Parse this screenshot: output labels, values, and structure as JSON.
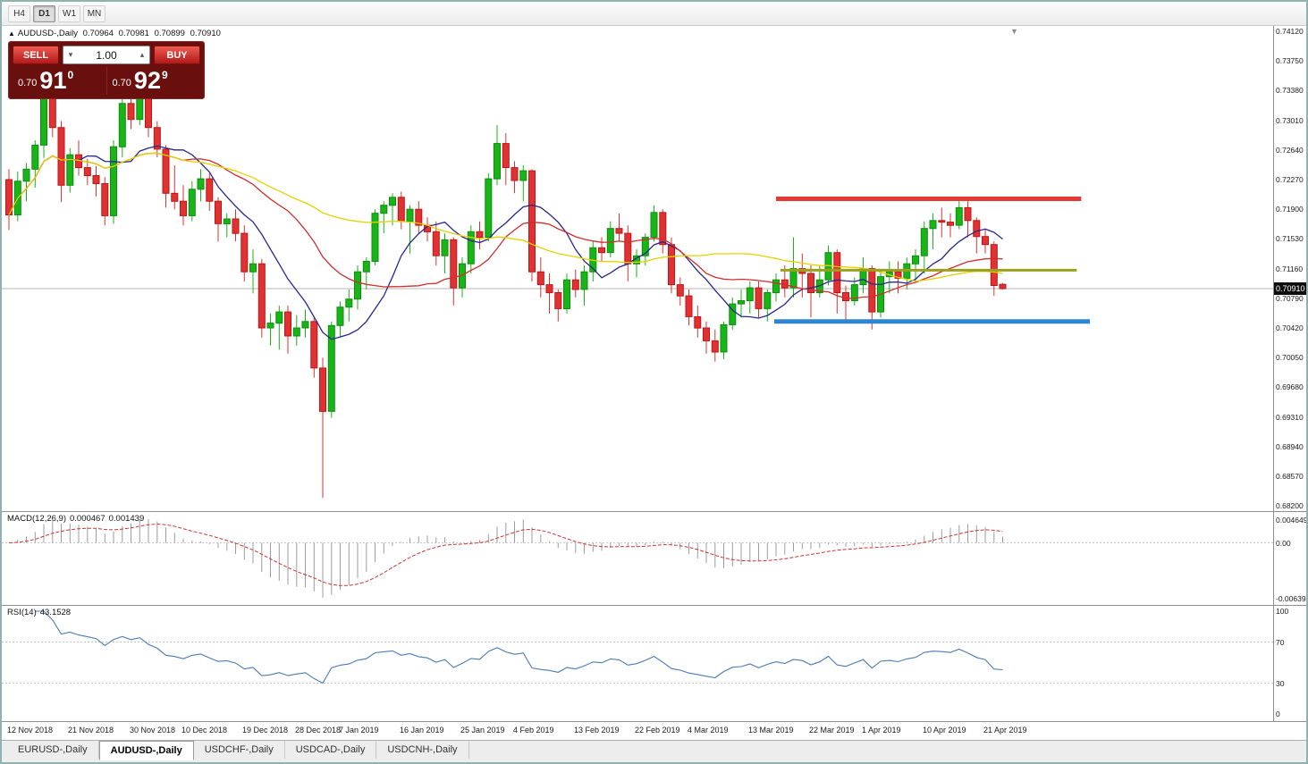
{
  "toolbar": {
    "items": [
      {
        "label": "H4",
        "active": false
      },
      {
        "label": "D1",
        "active": true
      },
      {
        "label": "W1",
        "active": false
      },
      {
        "label": "MN",
        "active": false
      }
    ]
  },
  "chart_header": {
    "collapse_icon": "▲",
    "title": "AUDUSD-,Daily",
    "open": "0.70964",
    "high": "0.70981",
    "low": "0.70899",
    "close": "0.70910"
  },
  "trade_panel": {
    "sell_label": "SELL",
    "buy_label": "BUY",
    "volume": "1.00",
    "volume_down_icon": "▾",
    "volume_up_icon": "▴",
    "sell_price": {
      "prefix": "0.70",
      "big": "91",
      "sup": "0"
    },
    "buy_price": {
      "prefix": "0.70",
      "big": "92",
      "sup": "9"
    }
  },
  "price_axis": {
    "labels": [
      "0.74120",
      "0.73750",
      "0.73380",
      "0.73010",
      "0.72640",
      "0.72270",
      "0.71900",
      "0.71530",
      "0.71160",
      "0.70790",
      "0.70420",
      "0.70050",
      "0.69680",
      "0.69310",
      "0.68940",
      "0.68570",
      "0.68200"
    ],
    "current": "0.70910"
  },
  "macd_panel": {
    "label": "MACD(12,26,9)",
    "value_main": "0.000467",
    "value_signal": "0.001439",
    "axis_top": "0.0046496",
    "axis_zero": "0.00",
    "axis_bottom": "-0.0063936"
  },
  "rsi_panel": {
    "label": "RSI(14)",
    "value": "43.1528",
    "axis": [
      "100",
      "70",
      "30",
      "0"
    ]
  },
  "date_axis": [
    {
      "label": "12 Nov 2018",
      "i": 0
    },
    {
      "label": "21 Nov 2018",
      "i": 7
    },
    {
      "label": "30 Nov 2018",
      "i": 14
    },
    {
      "label": "10 Dec 2018",
      "i": 20
    },
    {
      "label": "19 Dec 2018",
      "i": 27
    },
    {
      "label": "28 Dec 2018",
      "i": 33
    },
    {
      "label": "7 Jan 2019",
      "i": 38
    },
    {
      "label": "16 Jan 2019",
      "i": 45
    },
    {
      "label": "25 Jan 2019",
      "i": 52
    },
    {
      "label": "4 Feb 2019",
      "i": 58
    },
    {
      "label": "13 Feb 2019",
      "i": 65
    },
    {
      "label": "22 Feb 2019",
      "i": 72
    },
    {
      "label": "4 Mar 2019",
      "i": 78
    },
    {
      "label": "13 Mar 2019",
      "i": 85
    },
    {
      "label": "22 Mar 2019",
      "i": 92
    },
    {
      "label": "1 Apr 2019",
      "i": 98
    },
    {
      "label": "10 Apr 2019",
      "i": 105
    },
    {
      "label": "21 Apr 2019",
      "i": 112
    }
  ],
  "tabs": [
    {
      "label": "EURUSD-,Daily",
      "symbol": "EURUSD",
      "active": false
    },
    {
      "label": "AUDUSD-,Daily",
      "symbol": "AUDUSD",
      "active": true
    },
    {
      "label": "USDCHF-,Daily",
      "symbol": "USDCHF",
      "active": false
    },
    {
      "label": "USDCAD-,Daily",
      "symbol": "USDCAD",
      "active": false
    },
    {
      "label": "USDCNH-,Daily",
      "symbol": "USDCNH",
      "active": false
    }
  ],
  "chart_data": {
    "type": "candlestick",
    "symbol": "AUDUSD-",
    "timeframe": "Daily",
    "current_price": 0.7091,
    "price_range_top_label": 0.7412,
    "price_range_bottom_label": 0.682,
    "colors": {
      "up": "#18b418",
      "up_border": "#0b8f0b",
      "down": "#e03232",
      "down_border": "#bc1616",
      "bid_line": "#b4b4b4",
      "macd_histogram": "#9c9c9c",
      "macd_signal": "#cc3333",
      "rsi_line": "#4a7ab8"
    },
    "moving_averages": [
      {
        "period": 9,
        "color": "#26268c"
      },
      {
        "period": 21,
        "color": "#cf2e2e"
      },
      {
        "period": 45,
        "color": "#e3d200"
      }
    ],
    "levels": [
      {
        "name": "resistance",
        "price": 0.7203,
        "i1": 88,
        "i2": 123,
        "color": "#e53935",
        "width": 5
      },
      {
        "name": "mid-level",
        "price": 0.7114,
        "i1": 88.5,
        "i2": 122.5,
        "color": "#9aa21b",
        "width": 3
      },
      {
        "name": "support",
        "price": 0.705,
        "i1": 87.8,
        "i2": 124,
        "color": "#2e86d3",
        "width": 5
      }
    ],
    "indicators": {
      "macd": {
        "fast": 12,
        "slow": 26,
        "signal": 9
      },
      "rsi": {
        "period": 14
      }
    },
    "ohlc": [
      [
        0.7227,
        0.724,
        0.7164,
        0.7183
      ],
      [
        0.7183,
        0.7237,
        0.7175,
        0.7225
      ],
      [
        0.7225,
        0.7248,
        0.72,
        0.724
      ],
      [
        0.724,
        0.7276,
        0.7217,
        0.727
      ],
      [
        0.727,
        0.7338,
        0.7254,
        0.733
      ],
      [
        0.733,
        0.7337,
        0.728,
        0.7292
      ],
      [
        0.7292,
        0.73,
        0.7199,
        0.722
      ],
      [
        0.722,
        0.7266,
        0.7211,
        0.7258
      ],
      [
        0.7258,
        0.7276,
        0.7232,
        0.7242
      ],
      [
        0.7242,
        0.7253,
        0.722,
        0.7232
      ],
      [
        0.7232,
        0.7244,
        0.7206,
        0.7222
      ],
      [
        0.7222,
        0.723,
        0.717,
        0.7182
      ],
      [
        0.7182,
        0.7276,
        0.7172,
        0.7268
      ],
      [
        0.7268,
        0.7344,
        0.7255,
        0.7322
      ],
      [
        0.7322,
        0.7329,
        0.729,
        0.7302
      ],
      [
        0.7302,
        0.734,
        0.7295,
        0.7335
      ],
      [
        0.7335,
        0.7345,
        0.728,
        0.7292
      ],
      [
        0.7292,
        0.73,
        0.7255,
        0.7265
      ],
      [
        0.7265,
        0.727,
        0.7192,
        0.721
      ],
      [
        0.721,
        0.7245,
        0.719,
        0.72
      ],
      [
        0.72,
        0.722,
        0.717,
        0.7182
      ],
      [
        0.7182,
        0.7225,
        0.7175,
        0.7215
      ],
      [
        0.7215,
        0.724,
        0.72,
        0.7228
      ],
      [
        0.7228,
        0.7235,
        0.7188,
        0.72
      ],
      [
        0.72,
        0.7205,
        0.715,
        0.7172
      ],
      [
        0.7172,
        0.7185,
        0.7155,
        0.7178
      ],
      [
        0.7178,
        0.719,
        0.715,
        0.716
      ],
      [
        0.716,
        0.717,
        0.71,
        0.7112
      ],
      [
        0.7112,
        0.714,
        0.7085,
        0.7122
      ],
      [
        0.7122,
        0.7128,
        0.703,
        0.7042
      ],
      [
        0.7042,
        0.706,
        0.702,
        0.7048
      ],
      [
        0.7048,
        0.707,
        0.7015,
        0.7062
      ],
      [
        0.7062,
        0.707,
        0.701,
        0.7032
      ],
      [
        0.7032,
        0.7058,
        0.702,
        0.7042
      ],
      [
        0.7042,
        0.7065,
        0.703,
        0.705
      ],
      [
        0.705,
        0.7055,
        0.698,
        0.6992
      ],
      [
        0.6992,
        0.7005,
        0.683,
        0.6938
      ],
      [
        0.6938,
        0.705,
        0.693,
        0.7045
      ],
      [
        0.7045,
        0.7075,
        0.703,
        0.7068
      ],
      [
        0.7068,
        0.709,
        0.705,
        0.7078
      ],
      [
        0.7078,
        0.712,
        0.7065,
        0.7112
      ],
      [
        0.7112,
        0.713,
        0.709,
        0.7125
      ],
      [
        0.7125,
        0.719,
        0.712,
        0.7185
      ],
      [
        0.7185,
        0.72,
        0.716,
        0.7195
      ],
      [
        0.7195,
        0.721,
        0.717,
        0.7205
      ],
      [
        0.7205,
        0.7212,
        0.7165,
        0.7175
      ],
      [
        0.7175,
        0.7195,
        0.7135,
        0.719
      ],
      [
        0.719,
        0.72,
        0.716,
        0.717
      ],
      [
        0.717,
        0.718,
        0.715,
        0.7162
      ],
      [
        0.7162,
        0.7175,
        0.712,
        0.7132
      ],
      [
        0.7132,
        0.716,
        0.711,
        0.7152
      ],
      [
        0.7152,
        0.7155,
        0.707,
        0.7092
      ],
      [
        0.7092,
        0.713,
        0.708,
        0.7122
      ],
      [
        0.7122,
        0.717,
        0.711,
        0.7162
      ],
      [
        0.7162,
        0.7175,
        0.714,
        0.7155
      ],
      [
        0.7155,
        0.7235,
        0.715,
        0.7228
      ],
      [
        0.7228,
        0.7295,
        0.722,
        0.7272
      ],
      [
        0.7272,
        0.7285,
        0.722,
        0.7242
      ],
      [
        0.7242,
        0.725,
        0.721,
        0.7226
      ],
      [
        0.7226,
        0.7245,
        0.72,
        0.7238
      ],
      [
        0.7238,
        0.724,
        0.71,
        0.7112
      ],
      [
        0.7112,
        0.713,
        0.708,
        0.7096
      ],
      [
        0.7096,
        0.711,
        0.706,
        0.7086
      ],
      [
        0.7086,
        0.709,
        0.705,
        0.7066
      ],
      [
        0.7066,
        0.711,
        0.706,
        0.7102
      ],
      [
        0.7102,
        0.7115,
        0.708,
        0.709
      ],
      [
        0.709,
        0.712,
        0.707,
        0.7112
      ],
      [
        0.7112,
        0.715,
        0.71,
        0.7142
      ],
      [
        0.7142,
        0.7155,
        0.7125,
        0.7136
      ],
      [
        0.7136,
        0.7175,
        0.713,
        0.7166
      ],
      [
        0.7166,
        0.7185,
        0.715,
        0.716
      ],
      [
        0.716,
        0.717,
        0.71,
        0.7122
      ],
      [
        0.7122,
        0.714,
        0.7105,
        0.7132
      ],
      [
        0.7132,
        0.716,
        0.712,
        0.7155
      ],
      [
        0.7155,
        0.7195,
        0.715,
        0.7186
      ],
      [
        0.7186,
        0.719,
        0.7135,
        0.7146
      ],
      [
        0.7146,
        0.7155,
        0.7085,
        0.7096
      ],
      [
        0.7096,
        0.7105,
        0.707,
        0.7082
      ],
      [
        0.7082,
        0.709,
        0.7045,
        0.7056
      ],
      [
        0.7056,
        0.707,
        0.703,
        0.7042
      ],
      [
        0.7042,
        0.705,
        0.701,
        0.7026
      ],
      [
        0.7026,
        0.704,
        0.7,
        0.7012
      ],
      [
        0.7012,
        0.705,
        0.7003,
        0.7046
      ],
      [
        0.7046,
        0.708,
        0.704,
        0.7072
      ],
      [
        0.7072,
        0.709,
        0.7055,
        0.7076
      ],
      [
        0.7076,
        0.71,
        0.706,
        0.7092
      ],
      [
        0.7092,
        0.71,
        0.7055,
        0.7066
      ],
      [
        0.7066,
        0.709,
        0.705,
        0.7086
      ],
      [
        0.7086,
        0.711,
        0.7075,
        0.7102
      ],
      [
        0.7102,
        0.712,
        0.708,
        0.7092
      ],
      [
        0.7092,
        0.7155,
        0.708,
        0.7116
      ],
      [
        0.7116,
        0.7135,
        0.708,
        0.711
      ],
      [
        0.711,
        0.712,
        0.7055,
        0.7086
      ],
      [
        0.7086,
        0.712,
        0.708,
        0.7102
      ],
      [
        0.7102,
        0.7145,
        0.7095,
        0.7136
      ],
      [
        0.7136,
        0.714,
        0.706,
        0.7086
      ],
      [
        0.7086,
        0.7095,
        0.705,
        0.7076
      ],
      [
        0.7076,
        0.7105,
        0.707,
        0.7096
      ],
      [
        0.7096,
        0.713,
        0.7085,
        0.7116
      ],
      [
        0.7116,
        0.712,
        0.704,
        0.7062
      ],
      [
        0.7062,
        0.7115,
        0.7055,
        0.7106
      ],
      [
        0.7106,
        0.7125,
        0.7085,
        0.7112
      ],
      [
        0.7112,
        0.7125,
        0.7085,
        0.7104
      ],
      [
        0.7104,
        0.713,
        0.709,
        0.7122
      ],
      [
        0.7122,
        0.714,
        0.71,
        0.7132
      ],
      [
        0.7132,
        0.7175,
        0.711,
        0.7166
      ],
      [
        0.7166,
        0.7185,
        0.714,
        0.7176
      ],
      [
        0.7176,
        0.7192,
        0.7155,
        0.7174
      ],
      [
        0.7174,
        0.7185,
        0.7155,
        0.717
      ],
      [
        0.717,
        0.7205,
        0.7165,
        0.7192
      ],
      [
        0.7192,
        0.72,
        0.7155,
        0.7176
      ],
      [
        0.7176,
        0.718,
        0.7135,
        0.7156
      ],
      [
        0.7156,
        0.7165,
        0.7135,
        0.7146
      ],
      [
        0.7146,
        0.715,
        0.7082,
        0.7095
      ],
      [
        0.70964,
        0.70981,
        0.70899,
        0.7091
      ]
    ]
  }
}
